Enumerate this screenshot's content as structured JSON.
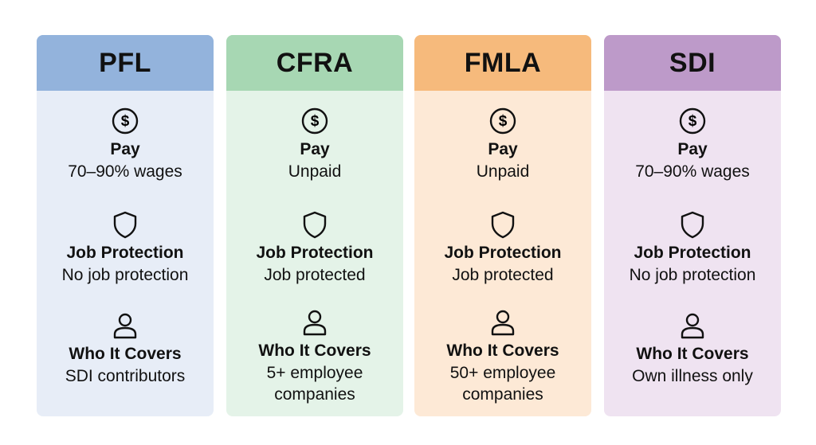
{
  "cards": [
    {
      "title": "PFL",
      "rows": [
        {
          "label": "Pay",
          "value": [
            "70–90% wages"
          ]
        },
        {
          "label": "Job Protection",
          "value": [
            "No job protection"
          ]
        },
        {
          "label": "Who It Covers",
          "value": [
            "SDI contributors"
          ]
        }
      ]
    },
    {
      "title": "CFRA",
      "rows": [
        {
          "label": "Pay",
          "value": [
            "Unpaid"
          ]
        },
        {
          "label": "Job Protection",
          "value": [
            "Job protected"
          ]
        },
        {
          "label": "Who It Covers",
          "value": [
            "5+ employee",
            "companies"
          ]
        }
      ]
    },
    {
      "title": "FMLA",
      "rows": [
        {
          "label": "Pay",
          "value": [
            "Unpaid"
          ]
        },
        {
          "label": "Job Protection",
          "value": [
            "Job protected"
          ]
        },
        {
          "label": "Who It Covers",
          "value": [
            "50+ employee",
            "companies"
          ]
        }
      ]
    },
    {
      "title": "SDI",
      "rows": [
        {
          "label": "Pay",
          "value": [
            "70–90% wages"
          ]
        },
        {
          "label": "Job Protection",
          "value": [
            "No job protection"
          ]
        },
        {
          "label": "Who It Covers",
          "value": [
            "Own illness only"
          ]
        }
      ]
    }
  ]
}
